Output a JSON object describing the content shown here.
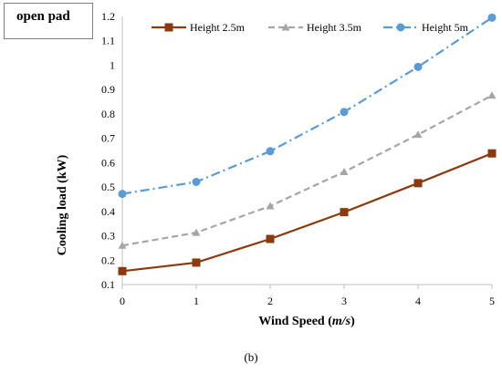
{
  "panel_label": "open pad",
  "caption": "(b)",
  "chart_data": {
    "type": "line",
    "title": "",
    "xlabel_main": "Wind Speed (",
    "xlabel_unit": "m/s",
    "xlabel_close": ")",
    "ylabel": "Cooling  load (kW)",
    "x": [
      0,
      1,
      2,
      3,
      4,
      5
    ],
    "xlim": [
      0,
      5
    ],
    "ylim": [
      0.1,
      1.2
    ],
    "x_ticks": [
      "0",
      "1",
      "2",
      "3",
      "4",
      "5"
    ],
    "y_ticks": [
      "0.1",
      "0.2",
      "0.3",
      "0.4",
      "0.5",
      "0.6",
      "0.7",
      "0.8",
      "0.9",
      "1",
      "1.1",
      "1.2"
    ],
    "grid": false,
    "legend_position": "top",
    "series": [
      {
        "name": "Height 2.5m",
        "values": [
          0.155,
          0.19,
          0.287,
          0.397,
          0.516,
          0.638
        ],
        "color": "#8B3A0F",
        "marker": "square",
        "line_style": "solid"
      },
      {
        "name": "Height 3.5m",
        "values": [
          0.26,
          0.313,
          0.422,
          0.562,
          0.715,
          0.876
        ],
        "color": "#A6A6A6",
        "marker": "triangle",
        "line_style": "dashed"
      },
      {
        "name": "Height 5m",
        "values": [
          0.472,
          0.521,
          0.647,
          0.808,
          0.993,
          1.195
        ],
        "color": "#5B9BD5",
        "marker": "circle",
        "line_style": "dashdot"
      }
    ]
  }
}
